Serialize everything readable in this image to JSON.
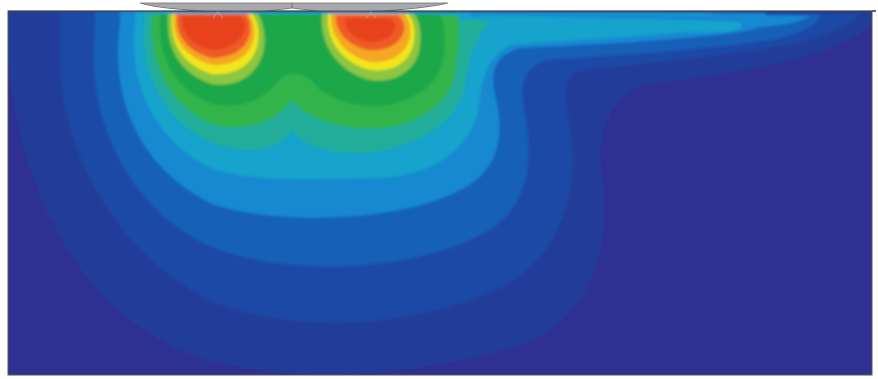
{
  "figure": {
    "kind": "fea-contour-plot",
    "legend": "none",
    "colors": {
      "background": "#2e3192",
      "band_outer": "#203c99",
      "band_deep_blue": "#1f4aa6",
      "band_blue": "#1660b8",
      "band_light_blue": "#1789d1",
      "band_cyan": "#19a3cc",
      "band_teal": "#22ad9a",
      "band_green_light": "#31b44b",
      "band_green": "#1ea84a",
      "band_yellow_green": "#8dc63f",
      "band_yellow": "#f2e51c",
      "band_orange": "#f5a623",
      "band_red_orange": "#f05a28",
      "band_red": "#e8431f",
      "indenter_fill": "#a7a9ac",
      "indenter_stroke": "#6d6e71",
      "surface_line": "#000000",
      "frame": "#555555"
    },
    "indenters": [
      {
        "name": "left-indenter"
      },
      {
        "name": "right-indenter"
      }
    ]
  }
}
